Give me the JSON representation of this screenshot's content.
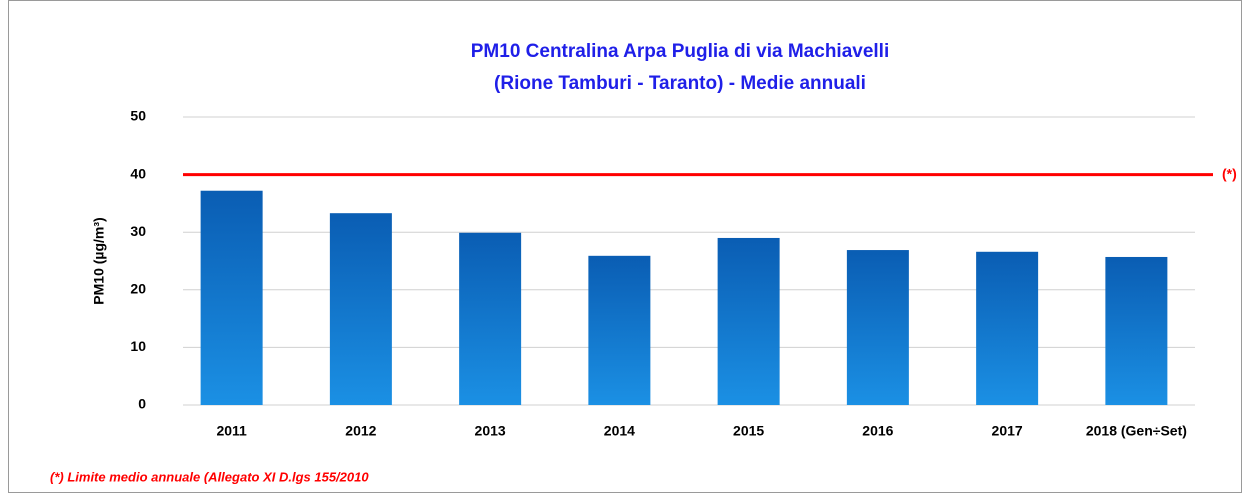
{
  "chart_data": {
    "type": "bar",
    "title": [
      "PM10 Centralina Arpa Puglia di via Machiavelli",
      "(Rione Tamburi - Taranto) - Medie annuali"
    ],
    "y_label": "PM10 (µg/m³)",
    "categories": [
      "2011",
      "2012",
      "2013",
      "2014",
      "2015",
      "2016",
      "2017",
      "2018 (Gen÷Set)"
    ],
    "values": [
      37.2,
      33.3,
      29.9,
      25.9,
      29.0,
      26.9,
      26.6,
      25.7
    ],
    "color": "#0a64c0",
    "ylim": [
      0,
      50
    ],
    "yticks": [
      0,
      10,
      20,
      30,
      40,
      50
    ],
    "grid": true,
    "reference_line": {
      "value": 40,
      "label": "(*)",
      "color": "#ff0000"
    },
    "footnote": "(*) Limite medio annuale (Allegato XI D.lgs 155/2010"
  }
}
